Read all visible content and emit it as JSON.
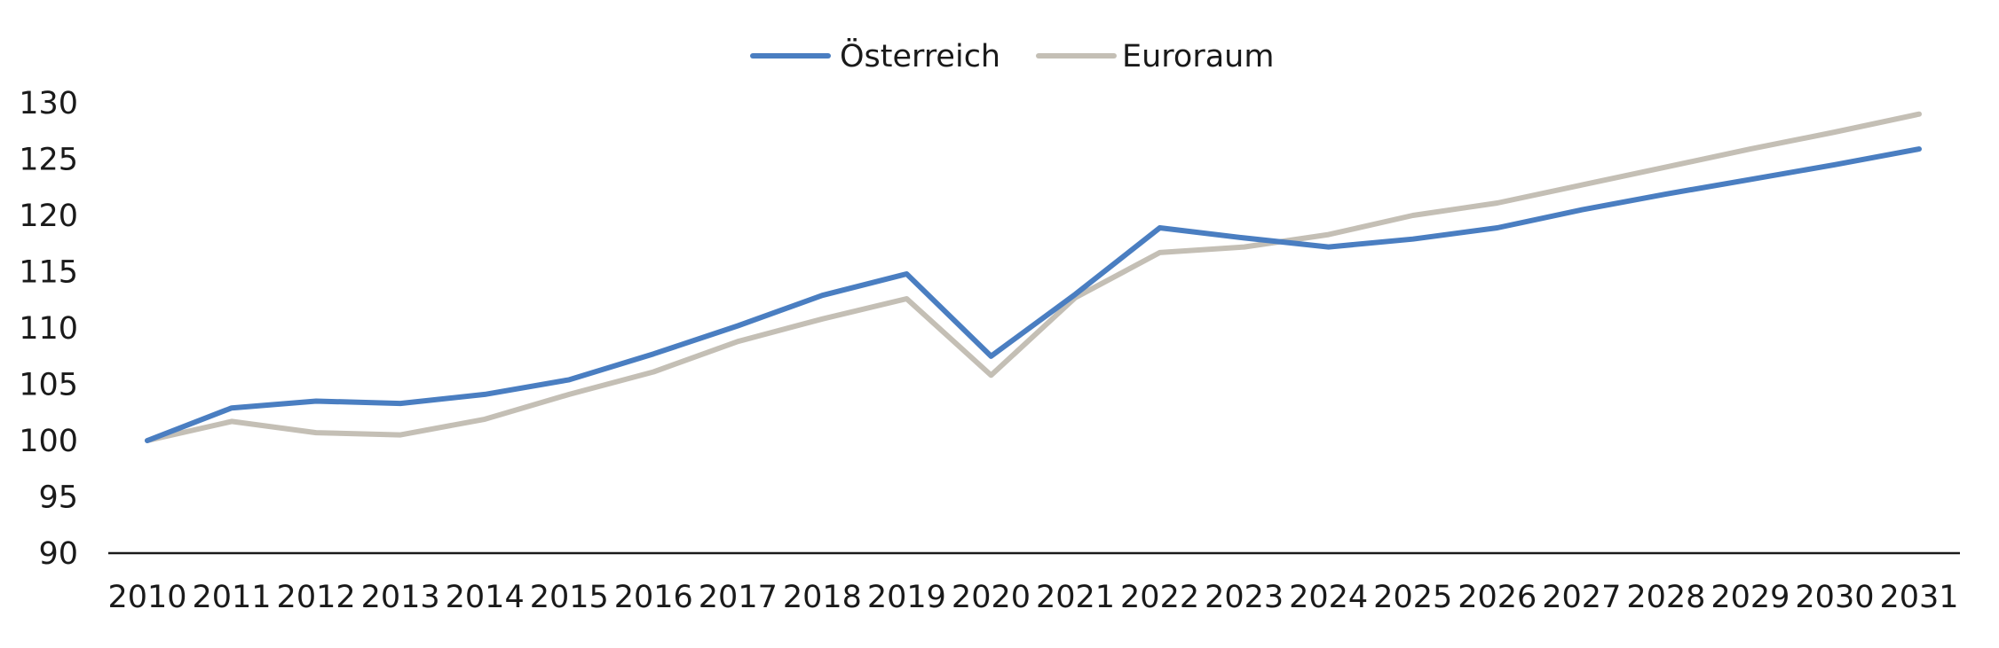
{
  "chart_data": {
    "type": "line",
    "title": "",
    "xlabel": "",
    "ylabel": "",
    "categories": [
      "2010",
      "2011",
      "2012",
      "2013",
      "2014",
      "2015",
      "2016",
      "2017",
      "2018",
      "2019",
      "2020",
      "2021",
      "2022",
      "2023",
      "2024",
      "2025",
      "2026",
      "2027",
      "2028",
      "2029",
      "2030",
      "2031"
    ],
    "ylim": [
      90,
      130
    ],
    "yticks": [
      90,
      95,
      100,
      105,
      110,
      115,
      120,
      125,
      130
    ],
    "grid": false,
    "legend_position": "top-center",
    "series": [
      {
        "name": "Österreich",
        "color": "#4a7ec1",
        "values": [
          100.0,
          102.9,
          103.5,
          103.3,
          104.1,
          105.4,
          107.7,
          110.2,
          112.9,
          114.8,
          107.5,
          113.0,
          118.9,
          118.0,
          117.2,
          117.9,
          118.9,
          120.5,
          121.9,
          123.2,
          124.5,
          125.9
        ]
      },
      {
        "name": "Euroraum",
        "color": "#c4bfb5",
        "values": [
          100.0,
          101.7,
          100.7,
          100.5,
          101.9,
          104.1,
          106.1,
          108.8,
          110.8,
          112.6,
          105.8,
          112.7,
          116.7,
          117.2,
          118.3,
          120.0,
          121.1,
          122.7,
          124.3,
          125.9,
          127.4,
          129.0
        ]
      }
    ]
  }
}
